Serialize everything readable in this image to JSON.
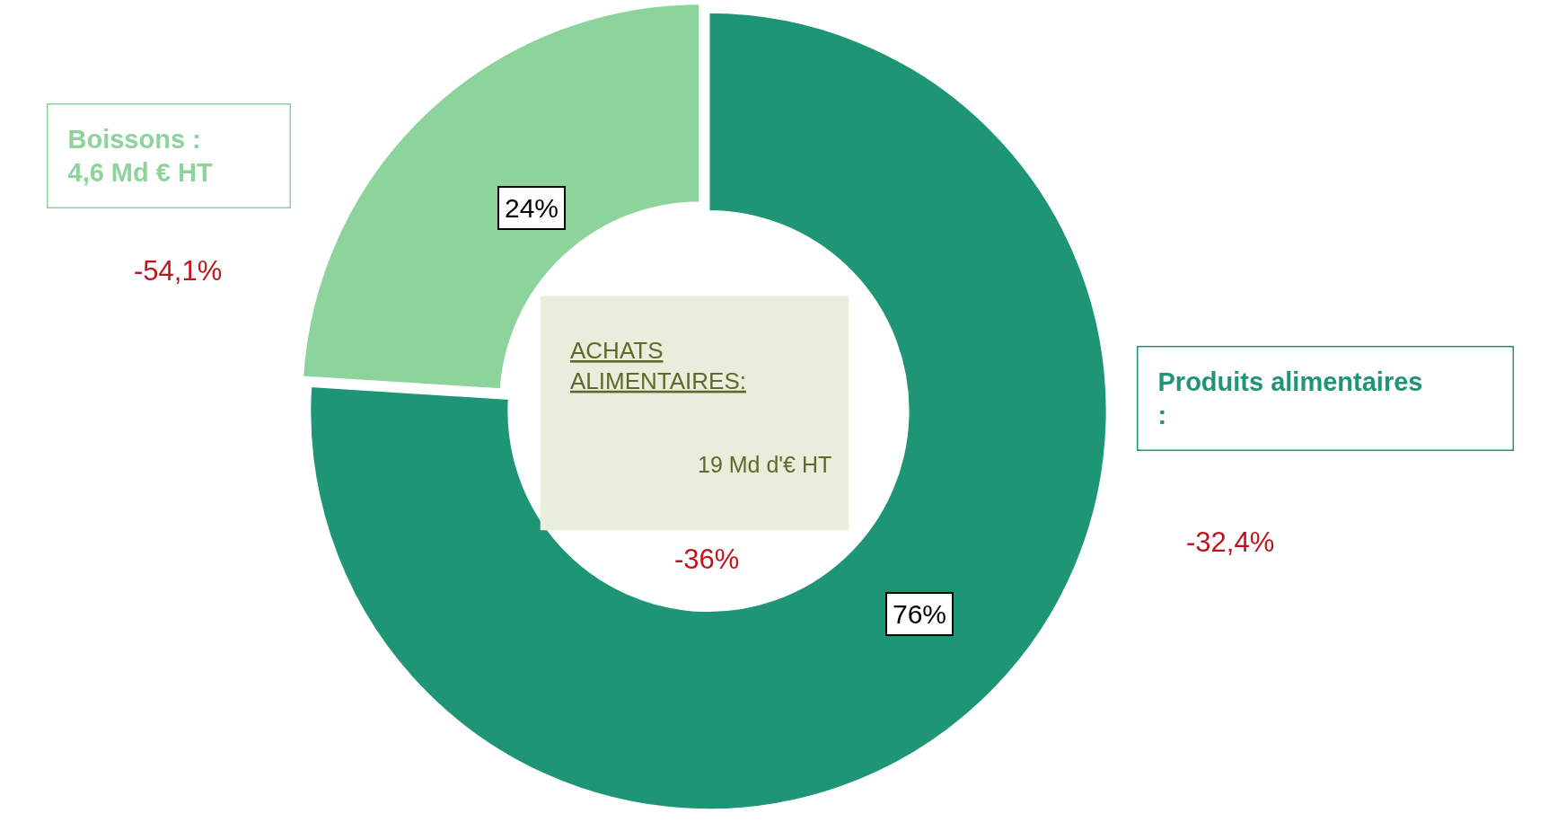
{
  "chart_data": {
    "type": "donut",
    "categories": [
      "Produits alimentaires",
      "Boissons"
    ],
    "values": [
      76,
      24
    ],
    "colors": [
      "#1e9575",
      "#8dd49c"
    ],
    "value_labels": [
      "76%",
      "24%"
    ],
    "annotations": [
      "ACHATS\nALIMENTAIRES:",
      "19 Md d'€ HT",
      "-36%",
      "-32,4%",
      "-54,1%",
      "4,6 Md € HT",
      ":",
      ":"
    ],
    "legend": false
  }
}
